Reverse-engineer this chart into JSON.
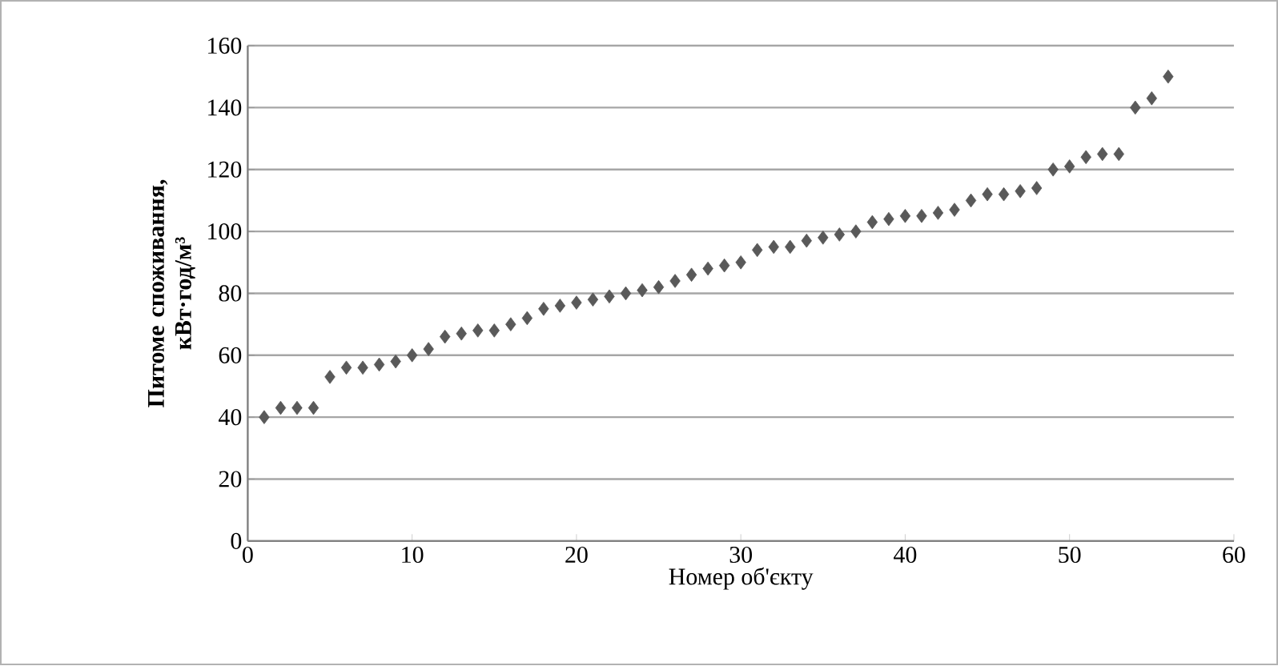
{
  "chart_data": {
    "type": "scatter",
    "xlabel": "Номер об'єкту",
    "ylabel": "Питоме споживання, кВт·год/м³",
    "x": [
      1,
      2,
      3,
      4,
      5,
      6,
      7,
      8,
      9,
      10,
      11,
      12,
      13,
      14,
      15,
      16,
      17,
      18,
      19,
      20,
      21,
      22,
      23,
      24,
      25,
      26,
      27,
      28,
      29,
      30,
      31,
      32,
      33,
      34,
      35,
      36,
      37,
      38,
      39,
      40,
      41,
      42,
      43,
      44,
      45,
      46,
      47,
      48,
      49,
      50,
      51,
      52,
      53,
      54,
      55,
      56
    ],
    "series": [
      {
        "color": "#595959",
        "values": [
          40,
          43,
          43,
          43,
          53,
          56,
          56,
          57,
          58,
          60,
          62,
          66,
          67,
          68,
          68,
          70,
          72,
          75,
          76,
          77,
          78,
          79,
          80,
          81,
          82,
          84,
          86,
          88,
          89,
          90,
          94,
          95,
          95,
          97,
          98,
          99,
          100,
          103,
          104,
          105,
          105,
          106,
          107,
          110,
          112,
          112,
          113,
          114,
          120,
          121,
          124,
          125,
          125,
          140,
          143,
          150
        ]
      }
    ],
    "xlim": [
      0,
      60
    ],
    "ylim": [
      0,
      160
    ],
    "xticks": [
      0,
      10,
      20,
      30,
      40,
      50,
      60
    ],
    "yticks": [
      0,
      20,
      40,
      60,
      80,
      100,
      120,
      140,
      160
    ],
    "grid": "y",
    "marker": "diamond"
  }
}
